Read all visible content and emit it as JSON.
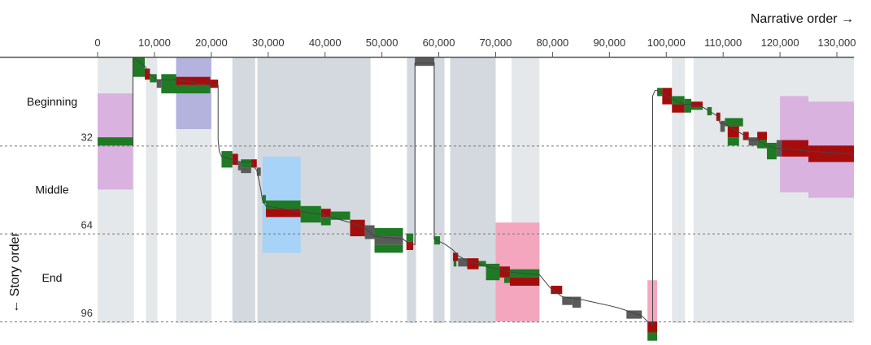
{
  "chart_data": {
    "type": "line",
    "x_axis_title": "Narrative order →",
    "y_axis_title": "← Story order",
    "xlim": [
      0,
      133000
    ],
    "ylim": [
      0,
      100
    ],
    "x_ticks": [
      {
        "value": 0,
        "label": "0"
      },
      {
        "value": 10000,
        "label": "10,000"
      },
      {
        "value": 20000,
        "label": "20,000"
      },
      {
        "value": 30000,
        "label": "30,000"
      },
      {
        "value": 40000,
        "label": "40,000"
      },
      {
        "value": 50000,
        "label": "50,000"
      },
      {
        "value": 60000,
        "label": "60,000"
      },
      {
        "value": 70000,
        "label": "70,000"
      },
      {
        "value": 80000,
        "label": "80,000"
      },
      {
        "value": 90000,
        "label": "90,000"
      },
      {
        "value": 100000,
        "label": "100,000"
      },
      {
        "value": 110000,
        "label": "110,000"
      },
      {
        "value": 120000,
        "label": "120,000"
      },
      {
        "value": 130000,
        "label": "130,000"
      }
    ],
    "y_ticks": [
      {
        "value": 32,
        "label": "32"
      },
      {
        "value": 64,
        "label": "64"
      },
      {
        "value": 96,
        "label": "96"
      }
    ],
    "bands": [
      {
        "label": "Beginning",
        "from": 0,
        "to": 32
      },
      {
        "label": "Middle",
        "from": 32,
        "to": 64
      },
      {
        "label": "End",
        "from": 64,
        "to": 96
      }
    ],
    "colors": {
      "green": "#1e7a24",
      "red": "#a50d0d",
      "gray": "#5a5a5a",
      "shade_light": "#e5e8ea",
      "shade_dark": "#d3d9de",
      "violet": "#d9b2e0",
      "periwinkle": "#b3b3dd",
      "sky": "#a6d3f7",
      "pink": "#f4a6bf"
    },
    "shading": [
      {
        "x0": 0,
        "x1": 6400,
        "shade": "light"
      },
      {
        "x0": 8500,
        "x1": 10500,
        "shade": "light"
      },
      {
        "x0": 13800,
        "x1": 20000,
        "shade": "light"
      },
      {
        "x0": 23700,
        "x1": 27700,
        "shade": "dark"
      },
      {
        "x0": 28100,
        "x1": 48000,
        "shade": "dark"
      },
      {
        "x0": 54400,
        "x1": 56000,
        "shade": "dark"
      },
      {
        "x0": 59000,
        "x1": 61000,
        "shade": "dark"
      },
      {
        "x0": 62000,
        "x1": 70000,
        "shade": "dark"
      },
      {
        "x0": 72800,
        "x1": 77700,
        "shade": "light"
      },
      {
        "x0": 101000,
        "x1": 103300,
        "shade": "light"
      },
      {
        "x0": 104800,
        "x1": 133000,
        "shade": "light"
      }
    ],
    "highlights": [
      {
        "x0": 0,
        "x1": 6200,
        "y0": 13,
        "y1": 48,
        "color": "violet"
      },
      {
        "x0": 13800,
        "x1": 20000,
        "y0": 0,
        "y1": 26,
        "color": "periwinkle"
      },
      {
        "x0": 29000,
        "x1": 35700,
        "y0": 36,
        "y1": 71,
        "color": "sky"
      },
      {
        "x0": 70000,
        "x1": 77700,
        "y0": 60,
        "y1": 96,
        "color": "pink"
      },
      {
        "x0": 96700,
        "x1": 98400,
        "y0": 81,
        "y1": 97,
        "color": "pink"
      },
      {
        "x0": 120000,
        "x1": 125000,
        "y0": 14,
        "y1": 49,
        "color": "violet"
      },
      {
        "x0": 125000,
        "x1": 133000,
        "y0": 16,
        "y1": 51,
        "color": "violet"
      }
    ],
    "segments": [
      {
        "x0": 0,
        "x1": 6200,
        "y0": 29,
        "y1": 32,
        "color": "green"
      },
      {
        "x0": 6200,
        "x1": 8300,
        "y0": 0,
        "y1": 7,
        "color": "green"
      },
      {
        "x0": 8300,
        "x1": 9200,
        "y0": 4,
        "y1": 8,
        "color": "red"
      },
      {
        "x0": 9200,
        "x1": 10400,
        "y0": 6,
        "y1": 9,
        "color": "green"
      },
      {
        "x0": 10400,
        "x1": 11200,
        "y0": 8,
        "y1": 11,
        "color": "gray"
      },
      {
        "x0": 11200,
        "x1": 13800,
        "y0": 6,
        "y1": 13,
        "color": "green"
      },
      {
        "x0": 13800,
        "x1": 19800,
        "y0": 7,
        "y1": 10,
        "color": "red"
      },
      {
        "x0": 13800,
        "x1": 19800,
        "y0": 10,
        "y1": 13,
        "color": "green"
      },
      {
        "x0": 19800,
        "x1": 21200,
        "y0": 8,
        "y1": 11,
        "color": "red"
      },
      {
        "x0": 21800,
        "x1": 23700,
        "y0": 34,
        "y1": 40,
        "color": "green"
      },
      {
        "x0": 23700,
        "x1": 24700,
        "y0": 35,
        "y1": 39,
        "color": "red"
      },
      {
        "x0": 24700,
        "x1": 25200,
        "y0": 38,
        "y1": 41,
        "color": "gray"
      },
      {
        "x0": 25200,
        "x1": 27000,
        "y0": 37,
        "y1": 40,
        "color": "green"
      },
      {
        "x0": 25200,
        "x1": 27000,
        "y0": 40,
        "y1": 42,
        "color": "gray"
      },
      {
        "x0": 27000,
        "x1": 28000,
        "y0": 37,
        "y1": 40,
        "color": "red"
      },
      {
        "x0": 28000,
        "x1": 28700,
        "y0": 40,
        "y1": 43,
        "color": "gray"
      },
      {
        "x0": 29000,
        "x1": 29600,
        "y0": 50,
        "y1": 53,
        "color": "green"
      },
      {
        "x0": 29600,
        "x1": 35700,
        "y0": 52,
        "y1": 55,
        "color": "green"
      },
      {
        "x0": 29600,
        "x1": 35700,
        "y0": 55,
        "y1": 58,
        "color": "red"
      },
      {
        "x0": 35700,
        "x1": 39300,
        "y0": 54,
        "y1": 60,
        "color": "green"
      },
      {
        "x0": 39300,
        "x1": 41000,
        "y0": 55,
        "y1": 58,
        "color": "red"
      },
      {
        "x0": 39300,
        "x1": 41000,
        "y0": 58,
        "y1": 61,
        "color": "green"
      },
      {
        "x0": 41000,
        "x1": 44400,
        "y0": 56,
        "y1": 59,
        "color": "green"
      },
      {
        "x0": 44400,
        "x1": 47000,
        "y0": 59,
        "y1": 65,
        "color": "red"
      },
      {
        "x0": 47000,
        "x1": 48700,
        "y0": 61,
        "y1": 66,
        "color": "gray"
      },
      {
        "x0": 48700,
        "x1": 53700,
        "y0": 62,
        "y1": 65,
        "color": "green"
      },
      {
        "x0": 48700,
        "x1": 53700,
        "y0": 65,
        "y1": 68,
        "color": "gray"
      },
      {
        "x0": 48700,
        "x1": 53700,
        "y0": 68,
        "y1": 71,
        "color": "green"
      },
      {
        "x0": 54300,
        "x1": 55500,
        "y0": 64,
        "y1": 67,
        "color": "green"
      },
      {
        "x0": 54300,
        "x1": 55500,
        "y0": 67,
        "y1": 70,
        "color": "red"
      },
      {
        "x0": 55800,
        "x1": 59200,
        "y0": 0,
        "y1": 3,
        "color": "gray"
      },
      {
        "x0": 59200,
        "x1": 60200,
        "y0": 65,
        "y1": 68,
        "color": "green"
      },
      {
        "x0": 62500,
        "x1": 63400,
        "y0": 71,
        "y1": 74,
        "color": "red"
      },
      {
        "x0": 63400,
        "x1": 65000,
        "y0": 73,
        "y1": 76,
        "color": "gray"
      },
      {
        "x0": 62600,
        "x1": 63100,
        "y0": 74,
        "y1": 76,
        "color": "green"
      },
      {
        "x0": 65000,
        "x1": 67000,
        "y0": 73,
        "y1": 77,
        "color": "red"
      },
      {
        "x0": 67000,
        "x1": 68300,
        "y0": 74,
        "y1": 76,
        "color": "green"
      },
      {
        "x0": 68300,
        "x1": 70700,
        "y0": 75,
        "y1": 81,
        "color": "green"
      },
      {
        "x0": 70700,
        "x1": 72500,
        "y0": 76,
        "y1": 80,
        "color": "red"
      },
      {
        "x0": 71500,
        "x1": 72500,
        "y0": 80,
        "y1": 82,
        "color": "green"
      },
      {
        "x0": 72500,
        "x1": 77700,
        "y0": 77,
        "y1": 80,
        "color": "green"
      },
      {
        "x0": 72500,
        "x1": 77700,
        "y0": 80,
        "y1": 83,
        "color": "red"
      },
      {
        "x0": 79700,
        "x1": 81700,
        "y0": 83,
        "y1": 86,
        "color": "red"
      },
      {
        "x0": 81700,
        "x1": 83500,
        "y0": 87,
        "y1": 90,
        "color": "gray"
      },
      {
        "x0": 83500,
        "x1": 85000,
        "y0": 87,
        "y1": 91,
        "color": "gray"
      },
      {
        "x0": 93000,
        "x1": 95700,
        "y0": 92,
        "y1": 95,
        "color": "gray"
      },
      {
        "x0": 96700,
        "x1": 98400,
        "y0": 96,
        "y1": 100,
        "color": "red"
      },
      {
        "x0": 96700,
        "x1": 98400,
        "y0": 100,
        "y1": 103,
        "color": "green"
      },
      {
        "x0": 98400,
        "x1": 99300,
        "y0": 11,
        "y1": 14,
        "color": "green"
      },
      {
        "x0": 99300,
        "x1": 101000,
        "y0": 11,
        "y1": 17,
        "color": "red"
      },
      {
        "x0": 101000,
        "x1": 103200,
        "y0": 14,
        "y1": 17,
        "color": "green"
      },
      {
        "x0": 101000,
        "x1": 103200,
        "y0": 17,
        "y1": 20,
        "color": "red"
      },
      {
        "x0": 103200,
        "x1": 104400,
        "y0": 15,
        "y1": 20,
        "color": "green"
      },
      {
        "x0": 104400,
        "x1": 106400,
        "y0": 16,
        "y1": 18,
        "color": "red"
      },
      {
        "x0": 104400,
        "x1": 106400,
        "y0": 18,
        "y1": 19,
        "color": "green"
      },
      {
        "x0": 107200,
        "x1": 108000,
        "y0": 18,
        "y1": 21,
        "color": "green"
      },
      {
        "x0": 108800,
        "x1": 109500,
        "y0": 20,
        "y1": 23,
        "color": "red"
      },
      {
        "x0": 109500,
        "x1": 110300,
        "y0": 23,
        "y1": 27,
        "color": "gray"
      },
      {
        "x0": 110300,
        "x1": 113500,
        "y0": 22,
        "y1": 25,
        "color": "green"
      },
      {
        "x0": 110800,
        "x1": 112800,
        "y0": 25,
        "y1": 29,
        "color": "red"
      },
      {
        "x0": 110800,
        "x1": 112800,
        "y0": 29,
        "y1": 32,
        "color": "green"
      },
      {
        "x0": 113500,
        "x1": 114500,
        "y0": 27,
        "y1": 30,
        "color": "red"
      },
      {
        "x0": 114500,
        "x1": 116000,
        "y0": 29,
        "y1": 32,
        "color": "gray"
      },
      {
        "x0": 116000,
        "x1": 117700,
        "y0": 27,
        "y1": 30,
        "color": "red"
      },
      {
        "x0": 116000,
        "x1": 117700,
        "y0": 30,
        "y1": 33,
        "color": "green"
      },
      {
        "x0": 117700,
        "x1": 119400,
        "y0": 31,
        "y1": 37,
        "color": "green"
      },
      {
        "x0": 119400,
        "x1": 120300,
        "y0": 30,
        "y1": 36,
        "color": "gray"
      },
      {
        "x0": 120300,
        "x1": 125000,
        "y0": 30,
        "y1": 36,
        "color": "red"
      },
      {
        "x0": 125000,
        "x1": 133000,
        "y0": 32,
        "y1": 38,
        "color": "red"
      }
    ],
    "connector": [
      [
        6200,
        32
      ],
      [
        6200,
        0
      ],
      [
        8300,
        3
      ],
      [
        9200,
        6
      ],
      [
        10400,
        8
      ],
      [
        11200,
        8
      ],
      [
        13800,
        8
      ],
      [
        19800,
        10
      ],
      [
        21200,
        10
      ],
      [
        21200,
        30
      ],
      [
        21400,
        34
      ],
      [
        21800,
        36
      ],
      [
        23700,
        37
      ],
      [
        25200,
        38
      ],
      [
        27000,
        38
      ],
      [
        27600,
        40
      ],
      [
        28000,
        41
      ],
      [
        28400,
        45
      ],
      [
        28700,
        48
      ],
      [
        29000,
        52
      ],
      [
        29600,
        54
      ],
      [
        35700,
        56
      ],
      [
        39300,
        57
      ],
      [
        41000,
        58
      ],
      [
        44400,
        60
      ],
      [
        47000,
        62
      ],
      [
        48700,
        65
      ],
      [
        53700,
        66
      ],
      [
        54300,
        67
      ],
      [
        55500,
        68
      ],
      [
        55800,
        68
      ],
      [
        55800,
        2
      ],
      [
        59200,
        2
      ],
      [
        59200,
        66
      ],
      [
        60200,
        67
      ],
      [
        61200,
        68
      ],
      [
        62500,
        70
      ],
      [
        63400,
        72
      ],
      [
        65000,
        74
      ],
      [
        67000,
        75
      ],
      [
        68300,
        76
      ],
      [
        70700,
        77
      ],
      [
        72500,
        78
      ],
      [
        77700,
        79
      ],
      [
        78500,
        81
      ],
      [
        79700,
        84
      ],
      [
        81700,
        87
      ],
      [
        85000,
        88
      ],
      [
        89500,
        90
      ],
      [
        91500,
        91
      ],
      [
        93000,
        92
      ],
      [
        95700,
        94
      ],
      [
        96700,
        96
      ],
      [
        97600,
        97
      ],
      [
        97600,
        14
      ],
      [
        98000,
        12
      ],
      [
        98400,
        12
      ],
      [
        99300,
        13
      ],
      [
        101000,
        15
      ],
      [
        103200,
        17
      ],
      [
        104400,
        17
      ],
      [
        106400,
        18
      ],
      [
        107200,
        19
      ],
      [
        108000,
        20
      ],
      [
        108800,
        21
      ],
      [
        109500,
        24
      ],
      [
        110300,
        24
      ],
      [
        113500,
        28
      ],
      [
        114500,
        30
      ],
      [
        116000,
        30
      ],
      [
        117700,
        32
      ],
      [
        119400,
        33
      ],
      [
        120300,
        33
      ],
      [
        125000,
        34
      ],
      [
        133000,
        35
      ]
    ]
  }
}
